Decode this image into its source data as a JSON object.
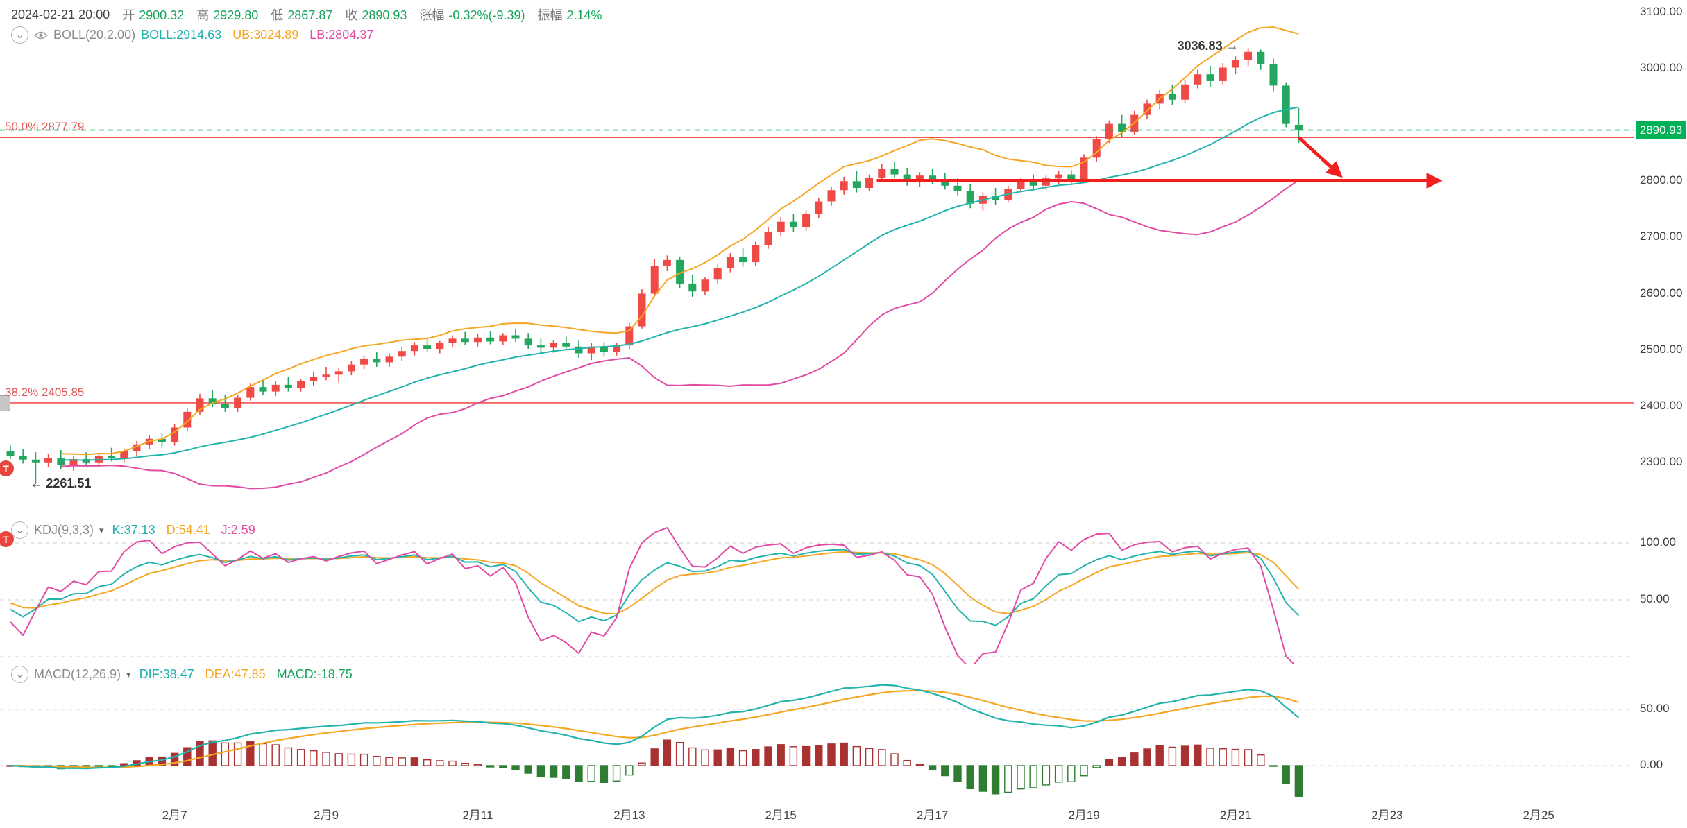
{
  "main_header": {
    "datetime": "2024-02-21 20:00",
    "items": [
      {
        "label": "开",
        "value": "2900.32"
      },
      {
        "label": "高",
        "value": "2929.80"
      },
      {
        "label": "低",
        "value": "2867.87"
      },
      {
        "label": "收",
        "value": "2890.93"
      },
      {
        "label": "涨幅",
        "value": "-0.32%(-9.39)"
      },
      {
        "label": "振幅",
        "value": "2.14%"
      }
    ]
  },
  "indicators": {
    "boll": {
      "name": "BOLL(20,2.00)",
      "values": [
        {
          "label": "BOLL:2914.63"
        },
        {
          "label": "UB:3024.89"
        },
        {
          "label": "LB:2804.37"
        }
      ]
    },
    "kdj": {
      "name": "KDJ(9,3,3)",
      "values": [
        {
          "label": "K:37.13"
        },
        {
          "label": "D:54.41"
        },
        {
          "label": "J:2.59"
        }
      ]
    },
    "macd": {
      "name": "MACD(12,26,9)",
      "values": [
        {
          "label": "DIF:38.47"
        },
        {
          "label": "DEA:47.85"
        },
        {
          "label": "MACD:-18.75"
        }
      ]
    }
  },
  "annotations": {
    "high_label": "3036.83 →",
    "low_label": "← 2261.51",
    "fib50_label": "50.0% 2877.79",
    "fib382_label": "38.2% 2405.85",
    "current_price_label": "2890.93"
  },
  "axes": {
    "price_ticks": [
      {
        "value": 3100,
        "label": "3100.00"
      },
      {
        "value": 3000,
        "label": "3000.00"
      },
      {
        "value": 2800,
        "label": "2800.00"
      },
      {
        "value": 2700,
        "label": "2700.00"
      },
      {
        "value": 2600,
        "label": "2600.00"
      },
      {
        "value": 2500,
        "label": "2500.00"
      },
      {
        "value": 2400,
        "label": "2400.00"
      },
      {
        "value": 2300,
        "label": "2300.00"
      }
    ],
    "kdj_ticks": [
      {
        "value": 100,
        "label": "100.00"
      },
      {
        "value": 50,
        "label": "50.00"
      }
    ],
    "macd_ticks": [
      {
        "value": 50,
        "label": "50.00"
      },
      {
        "value": 0,
        "label": "0.00"
      }
    ],
    "x_ticks": [
      {
        "label": "2月7",
        "index": 13
      },
      {
        "label": "2月9",
        "index": 25
      },
      {
        "label": "2月11",
        "index": 37
      },
      {
        "label": "2月13",
        "index": 49
      },
      {
        "label": "2月15",
        "index": 61
      },
      {
        "label": "2月17",
        "index": 73
      },
      {
        "label": "2月19",
        "index": 85
      },
      {
        "label": "2月21",
        "index": 97
      },
      {
        "label": "2月23",
        "index": 109
      },
      {
        "label": "2月25",
        "index": 121
      }
    ]
  },
  "colors": {
    "up": "#ef4a45",
    "down": "#23a65e",
    "teal": "#23b3ad",
    "orange": "#f5a623",
    "magenta": "#e14ba4",
    "macd_red": "#a83232",
    "macd_green": "#2f7d32",
    "fib_red": "#ef5350",
    "price_line_green": "#00b155",
    "draw_red": "#f31f1f",
    "grid": "#d8d8d8"
  },
  "chart_data": {
    "type": "candlestick",
    "interval": "4h",
    "current": {
      "time": "2024-02-21 20:00",
      "open": 2900.32,
      "high": 2929.8,
      "low": 2867.87,
      "close": 2890.93,
      "change_pct": "-0.32%",
      "change": "-9.39",
      "amplitude": "2.14%"
    },
    "y_axis_range": [
      2260,
      3110
    ],
    "boll": {
      "period": 20,
      "deviation": 2.0,
      "mid": 2914.63,
      "upper": 3024.89,
      "lower": 2804.37
    },
    "kdj": {
      "params": [
        9,
        3,
        3
      ],
      "k": 37.13,
      "d": 54.41,
      "j": 2.59,
      "panel_ticks": [
        100,
        50
      ]
    },
    "macd": {
      "params": [
        12,
        26,
        9
      ],
      "dif": 38.47,
      "dea": 47.85,
      "macd": -18.75,
      "panel_ticks": [
        50,
        0
      ]
    },
    "fib_levels": [
      {
        "level": "50.0%",
        "price": 2877.79
      },
      {
        "level": "38.2%",
        "price": 2405.85
      }
    ],
    "marked_high": 3036.83,
    "marked_low": 2261.51,
    "marked_low_index": 2,
    "marked_high_index": 98,
    "current_price_line": 2890.93,
    "trend_arrow": {
      "price": 2801,
      "from_index": 68.6,
      "to_index": 113
    },
    "down_arrow": {
      "from": {
        "index": 102,
        "price": 2878
      },
      "to": {
        "index": 105.2,
        "price": 2812
      }
    },
    "candles": [
      [
        2320,
        2330,
        2306,
        2312
      ],
      [
        2312,
        2324,
        2298,
        2305
      ],
      [
        2305,
        2318,
        2261.51,
        2300
      ],
      [
        2300,
        2315,
        2292,
        2308
      ],
      [
        2308,
        2322,
        2288,
        2296
      ],
      [
        2296,
        2312,
        2285,
        2306
      ],
      [
        2306,
        2318,
        2295,
        2300
      ],
      [
        2300,
        2316,
        2292,
        2312
      ],
      [
        2312,
        2326,
        2302,
        2308
      ],
      [
        2308,
        2325,
        2300,
        2320
      ],
      [
        2320,
        2338,
        2312,
        2332
      ],
      [
        2332,
        2348,
        2324,
        2342
      ],
      [
        2342,
        2352,
        2326,
        2336
      ],
      [
        2336,
        2368,
        2330,
        2362
      ],
      [
        2362,
        2396,
        2356,
        2390
      ],
      [
        2390,
        2422,
        2384,
        2414
      ],
      [
        2414,
        2428,
        2398,
        2404
      ],
      [
        2404,
        2420,
        2390,
        2396
      ],
      [
        2396,
        2420,
        2390,
        2415
      ],
      [
        2415,
        2440,
        2410,
        2434
      ],
      [
        2434,
        2448,
        2420,
        2426
      ],
      [
        2426,
        2444,
        2418,
        2438
      ],
      [
        2438,
        2452,
        2426,
        2432
      ],
      [
        2432,
        2448,
        2426,
        2444
      ],
      [
        2444,
        2460,
        2436,
        2452
      ],
      [
        2452,
        2470,
        2446,
        2456
      ],
      [
        2456,
        2468,
        2442,
        2462
      ],
      [
        2462,
        2480,
        2455,
        2474
      ],
      [
        2474,
        2490,
        2466,
        2484
      ],
      [
        2484,
        2496,
        2470,
        2478
      ],
      [
        2478,
        2494,
        2470,
        2488
      ],
      [
        2488,
        2505,
        2480,
        2498
      ],
      [
        2498,
        2514,
        2490,
        2508
      ],
      [
        2508,
        2520,
        2496,
        2502
      ],
      [
        2502,
        2516,
        2494,
        2512
      ],
      [
        2512,
        2526,
        2505,
        2520
      ],
      [
        2520,
        2532,
        2508,
        2514
      ],
      [
        2514,
        2528,
        2506,
        2522
      ],
      [
        2522,
        2534,
        2510,
        2515
      ],
      [
        2515,
        2530,
        2508,
        2526
      ],
      [
        2526,
        2538,
        2514,
        2520
      ],
      [
        2520,
        2530,
        2502,
        2508
      ],
      [
        2508,
        2520,
        2496,
        2504
      ],
      [
        2504,
        2518,
        2495,
        2512
      ],
      [
        2512,
        2524,
        2500,
        2506
      ],
      [
        2506,
        2518,
        2486,
        2494
      ],
      [
        2494,
        2512,
        2482,
        2506
      ],
      [
        2506,
        2514,
        2488,
        2496
      ],
      [
        2496,
        2512,
        2490,
        2508
      ],
      [
        2508,
        2548,
        2502,
        2542
      ],
      [
        2542,
        2608,
        2538,
        2600
      ],
      [
        2600,
        2662,
        2595,
        2650
      ],
      [
        2650,
        2668,
        2640,
        2660
      ],
      [
        2660,
        2666,
        2610,
        2618
      ],
      [
        2618,
        2634,
        2594,
        2604
      ],
      [
        2604,
        2630,
        2598,
        2625
      ],
      [
        2625,
        2652,
        2618,
        2645
      ],
      [
        2645,
        2672,
        2638,
        2665
      ],
      [
        2665,
        2682,
        2648,
        2656
      ],
      [
        2656,
        2692,
        2650,
        2686
      ],
      [
        2686,
        2718,
        2680,
        2710
      ],
      [
        2710,
        2736,
        2702,
        2728
      ],
      [
        2728,
        2742,
        2710,
        2718
      ],
      [
        2718,
        2748,
        2712,
        2742
      ],
      [
        2742,
        2770,
        2735,
        2764
      ],
      [
        2764,
        2790,
        2756,
        2784
      ],
      [
        2784,
        2808,
        2776,
        2800
      ],
      [
        2800,
        2818,
        2780,
        2788
      ],
      [
        2788,
        2812,
        2782,
        2806
      ],
      [
        2806,
        2830,
        2800,
        2822
      ],
      [
        2822,
        2834,
        2806,
        2812
      ],
      [
        2812,
        2824,
        2792,
        2798
      ],
      [
        2798,
        2816,
        2790,
        2810
      ],
      [
        2810,
        2822,
        2795,
        2800
      ],
      [
        2800,
        2815,
        2785,
        2792
      ],
      [
        2792,
        2806,
        2775,
        2782
      ],
      [
        2782,
        2795,
        2752,
        2760
      ],
      [
        2760,
        2780,
        2748,
        2774
      ],
      [
        2774,
        2788,
        2758,
        2766
      ],
      [
        2766,
        2792,
        2762,
        2786
      ],
      [
        2786,
        2806,
        2780,
        2800
      ],
      [
        2800,
        2812,
        2786,
        2792
      ],
      [
        2792,
        2810,
        2785,
        2805
      ],
      [
        2805,
        2818,
        2795,
        2812
      ],
      [
        2812,
        2820,
        2796,
        2802
      ],
      [
        2802,
        2848,
        2798,
        2842
      ],
      [
        2842,
        2880,
        2835,
        2875
      ],
      [
        2875,
        2908,
        2868,
        2902
      ],
      [
        2902,
        2918,
        2878,
        2888
      ],
      [
        2888,
        2925,
        2882,
        2918
      ],
      [
        2918,
        2945,
        2910,
        2938
      ],
      [
        2938,
        2962,
        2928,
        2955
      ],
      [
        2955,
        2972,
        2935,
        2945
      ],
      [
        2945,
        2980,
        2940,
        2972
      ],
      [
        2972,
        2998,
        2965,
        2990
      ],
      [
        2990,
        3005,
        2968,
        2978
      ],
      [
        2978,
        3010,
        2972,
        3002
      ],
      [
        3002,
        3022,
        2990,
        3015
      ],
      [
        3015,
        3036.83,
        3005,
        3030
      ],
      [
        3030,
        3034,
        2998,
        3008
      ],
      [
        3008,
        3018,
        2960,
        2970
      ],
      [
        2970,
        2976,
        2896,
        2902
      ],
      [
        2900.32,
        2929.8,
        2867.87,
        2890.93
      ]
    ]
  }
}
